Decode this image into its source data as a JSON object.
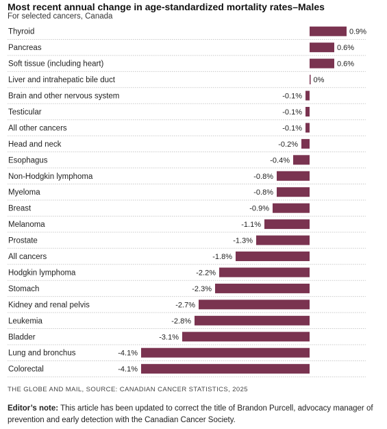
{
  "title": "Most recent annual change in age-standardized mortality rates–Males",
  "subtitle": "For selected cancers, Canada",
  "source": "THE GLOBE AND MAIL, SOURCE: CANADIAN CANCER STATISTICS, 2025",
  "note": {
    "label": "Editor’s note:",
    "text": "This article has been updated to correct the title of Brandon Purcell, advocacy manager of prevention and early detection with the Canadian Cancer Society."
  },
  "colors": {
    "bar": "#7a3350",
    "rule": "#c9c9c9"
  },
  "chart_data": {
    "type": "bar",
    "orientation": "horizontal",
    "title": "Most recent annual change in age-standardized mortality rates–Males",
    "subtitle": "For selected cancers, Canada",
    "unit": "%",
    "categories": [
      "Thyroid",
      "Pancreas",
      "Soft tissue (including heart)",
      "Liver and intrahepatic bile duct",
      "Brain and other nervous system",
      "Testicular",
      "All other cancers",
      "Head and neck",
      "Esophagus",
      "Non-Hodgkin lymphoma",
      "Myeloma",
      "Breast",
      "Melanoma",
      "Prostate",
      "All cancers",
      "Hodgkin lymphoma",
      "Stomach",
      "Kidney and renal pelvis",
      "Leukemia",
      "Bladder",
      "Lung and bronchus",
      "Colorectal"
    ],
    "values": [
      0.9,
      0.6,
      0.6,
      0,
      -0.1,
      -0.1,
      -0.1,
      -0.2,
      -0.4,
      -0.8,
      -0.8,
      -0.9,
      -1.1,
      -1.3,
      -1.8,
      -2.2,
      -2.3,
      -2.7,
      -2.8,
      -3.1,
      -4.1,
      -4.1
    ],
    "value_labels": [
      "0.9%",
      "0.6%",
      "0.6%",
      "0%",
      "-0.1%",
      "-0.1%",
      "-0.1%",
      "-0.2%",
      "-0.4%",
      "-0.8%",
      "-0.8%",
      "-0.9%",
      "-1.1%",
      "-1.3%",
      "-1.8%",
      "-2.2%",
      "-2.3%",
      "-2.7%",
      "-2.8%",
      "-3.1%",
      "-4.1%",
      "-4.1%"
    ],
    "xlim": [
      -4.1,
      0.9
    ],
    "grid": false,
    "legend": "none"
  }
}
